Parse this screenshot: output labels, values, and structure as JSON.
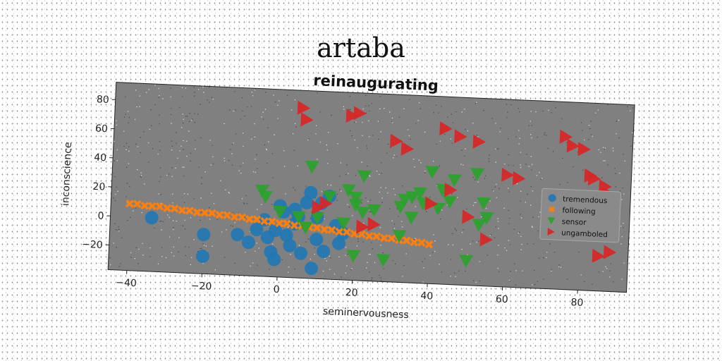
{
  "suptitle": "artaba",
  "chart_data": {
    "type": "scatter",
    "title": "reinaugurating",
    "xlabel": "seminervousness",
    "ylabel": "inconscience",
    "xlim": [
      -45,
      93
    ],
    "ylim": [
      -37,
      92
    ],
    "xticks": [
      -40,
      -20,
      0,
      20,
      40,
      60,
      80
    ],
    "yticks": [
      -20,
      0,
      20,
      40,
      60,
      80
    ],
    "grid": false,
    "legend_position": "right",
    "series": [
      {
        "name": "tremendous",
        "marker": "circle",
        "color": "#1f77b4",
        "x": [
          -34,
          -20,
          -20,
          -11,
          -8,
          -6,
          -4,
          -3,
          -2,
          -1,
          -1,
          0,
          1,
          2,
          3,
          4,
          4,
          5,
          6,
          7,
          8,
          9,
          10,
          10,
          11,
          12,
          13,
          15,
          16,
          17
        ],
        "y": [
          0,
          -10,
          -25,
          -9,
          -14,
          -5,
          2,
          -10,
          -20,
          -25,
          -5,
          12,
          8,
          -8,
          -15,
          0,
          10,
          5,
          -20,
          15,
          22,
          -30,
          -10,
          5,
          15,
          -18,
          20,
          0,
          -12,
          -5
        ]
      },
      {
        "name": "following",
        "marker": "x",
        "color": "#ff7f0e",
        "x": [
          -40,
          -38,
          -36,
          -34,
          -32,
          -30,
          -28,
          -26,
          -24,
          -22,
          -20,
          -18,
          -16,
          -14,
          -12,
          -10,
          -8,
          -6,
          -4,
          -2,
          0,
          2,
          4,
          6,
          8,
          10,
          12,
          14,
          16,
          18,
          20,
          22,
          24,
          26,
          28,
          30,
          32,
          34,
          36,
          38,
          40
        ],
        "y": [
          9,
          9,
          8,
          8,
          8,
          7,
          7,
          6,
          6,
          5,
          5,
          5,
          4,
          4,
          3,
          3,
          2,
          2,
          1,
          1,
          0,
          0,
          -1,
          -1,
          -2,
          -2,
          -3,
          -3,
          -4,
          -4,
          -5,
          -5,
          -6,
          -6,
          -7,
          -7,
          -8,
          -8,
          -9,
          -9,
          -10
        ]
      },
      {
        "name": "sensor",
        "marker": "triangle_down",
        "color": "#2ca02c",
        "x": [
          -5,
          -4,
          0,
          5,
          7,
          8,
          10,
          13,
          17,
          18,
          20,
          20,
          20,
          22,
          22,
          25,
          28,
          32,
          32,
          33,
          35,
          35,
          37,
          38,
          40,
          42,
          43,
          45,
          46,
          50,
          52,
          53,
          54,
          55
        ],
        "y": [
          22,
          18,
          8,
          5,
          -2,
          40,
          5,
          20,
          2,
          25,
          20,
          15,
          -20,
          10,
          35,
          12,
          -22,
          15,
          -5,
          20,
          22,
          8,
          25,
          18,
          40,
          15,
          28,
          20,
          35,
          -20,
          40,
          5,
          20,
          10
        ]
      },
      {
        "name": "ungamboled",
        "marker": "triangle_right",
        "color": "#d62728",
        "x": [
          5,
          6,
          10,
          12,
          18,
          20,
          22,
          25,
          30,
          33,
          40,
          43,
          45,
          47,
          50,
          52,
          55,
          60,
          63,
          75,
          77,
          80,
          82,
          83,
          85,
          86,
          87,
          88
        ],
        "y": [
          80,
          72,
          12,
          15,
          76,
          78,
          0,
          2,
          60,
          55,
          18,
          70,
          28,
          65,
          10,
          62,
          -5,
          40,
          38,
          68,
          62,
          60,
          42,
          40,
          -13,
          35,
          30,
          -10
        ]
      }
    ]
  }
}
